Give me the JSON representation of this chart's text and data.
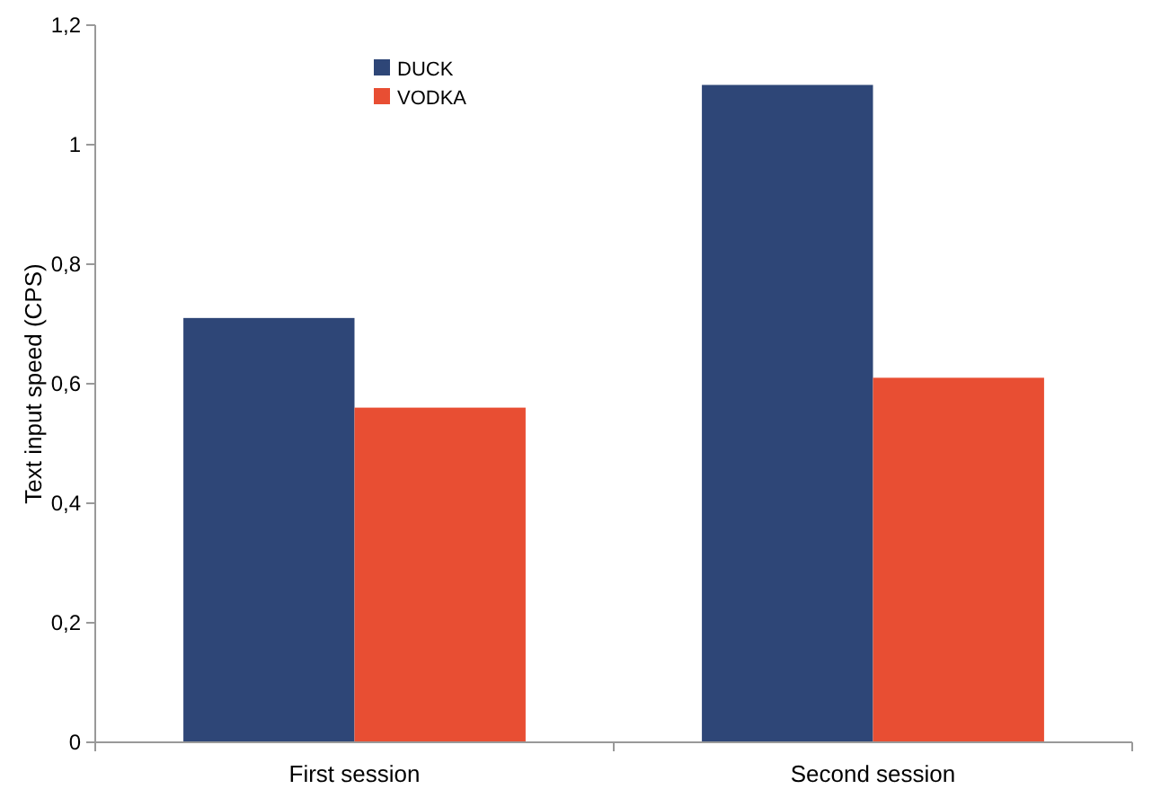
{
  "chart_data": {
    "type": "bar",
    "ylabel": "Text input speed (CPS)",
    "categories": [
      "First session",
      "Second session"
    ],
    "series": [
      {
        "name": "DUCK",
        "color": "#2e4677",
        "values": [
          0.71,
          1.1
        ]
      },
      {
        "name": "VODKA",
        "color": "#e84e33",
        "values": [
          0.56,
          0.61
        ]
      }
    ],
    "ylim": [
      0,
      1.2
    ],
    "yticks": [
      0,
      {
        "value": 0.2,
        "label": "0,2"
      },
      {
        "value": 0.4,
        "label": "0,4"
      },
      {
        "value": 0.6,
        "label": "0,6"
      },
      {
        "value": 0.8,
        "label": "0,8"
      },
      1,
      {
        "value": 1.2,
        "label": "1,2"
      }
    ],
    "grid": false,
    "legend": "top"
  }
}
